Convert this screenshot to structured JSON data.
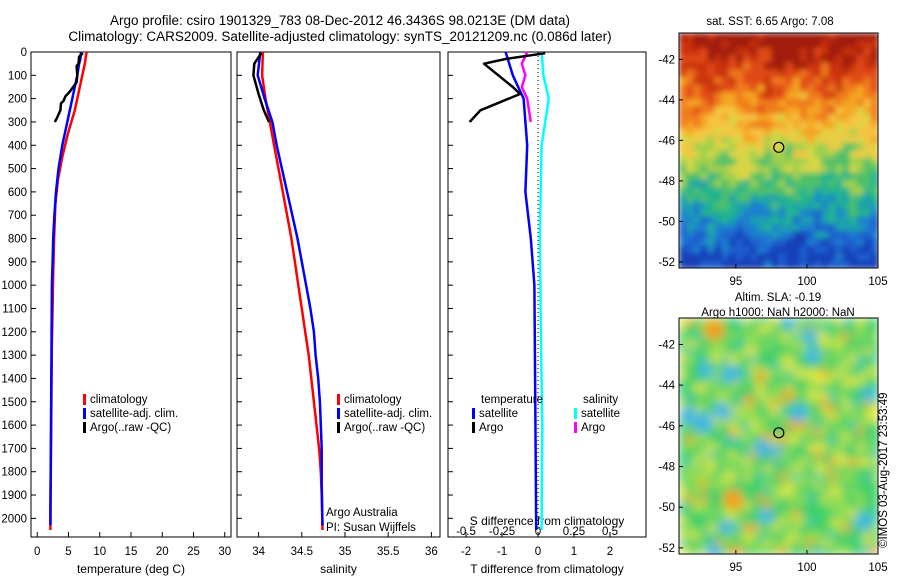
{
  "header": {
    "title_line1": "Argo profile: csiro 1901329_783 08-Dec-2012 46.3436S 98.0213E (DM data)",
    "title_line2": "Climatology: CARS2009. Satellite-adjusted climatology: synTS_20121209.nc (0.086d later)"
  },
  "colors": {
    "climatology": "#ff0000",
    "satellite": "#0000ff",
    "argo": "#000000",
    "satellite_salinity": "#00ffff",
    "argo_salinity": "#ff00ff"
  },
  "chart_data": [
    {
      "type": "line",
      "id": "temperature",
      "xlabel": "temperature (deg C)",
      "ylabel": "",
      "xlim": [
        -1,
        31
      ],
      "ylim": [
        2080,
        0
      ],
      "y_reversed": true,
      "xticks": [
        0,
        5,
        10,
        15,
        20,
        25,
        30
      ],
      "yticks": [
        0,
        100,
        200,
        300,
        400,
        500,
        600,
        700,
        800,
        900,
        1000,
        1100,
        1200,
        1300,
        1400,
        1500,
        1600,
        1700,
        1800,
        1900,
        2000
      ],
      "legend": [
        "climatology",
        "satellite-adj. clim.",
        "Argo(..raw -QC)"
      ],
      "series": [
        {
          "name": "climatology",
          "x": [
            7.9,
            7.6,
            6.8,
            6.0,
            4.9,
            4.0,
            3.3,
            2.9,
            2.7,
            2.55,
            2.45,
            2.35,
            2.3,
            2.25,
            2.2,
            2.15,
            2.1
          ],
          "y": [
            0,
            50,
            150,
            250,
            350,
            450,
            550,
            650,
            800,
            950,
            1100,
            1250,
            1400,
            1550,
            1700,
            1850,
            2050
          ]
        },
        {
          "name": "satellite-adj. clim.",
          "x": [
            7.0,
            6.9,
            6.7,
            6.4,
            5.6,
            4.8,
            4.0,
            3.4,
            3.0,
            2.75,
            2.55,
            2.45,
            2.35,
            2.3,
            2.25,
            2.2,
            2.15,
            2.1,
            2.1
          ],
          "y": [
            0,
            30,
            50,
            100,
            200,
            300,
            400,
            500,
            600,
            700,
            800,
            900,
            1000,
            1200,
            1400,
            1600,
            1800,
            1950,
            2030
          ]
        },
        {
          "name": "Argo(..raw -QC)",
          "x": [
            7.3,
            6.7,
            6.6,
            6.3,
            6.4,
            6.3,
            5.2,
            4.5,
            4.2,
            3.8,
            3.7,
            3.2,
            2.8
          ],
          "y": [
            5,
            20,
            50,
            60,
            100,
            130,
            170,
            190,
            210,
            220,
            250,
            280,
            300
          ]
        }
      ]
    },
    {
      "type": "line",
      "id": "salinity",
      "xlabel": "salinity",
      "ylabel": "",
      "xlim": [
        33.75,
        36.1
      ],
      "ylim": [
        2080,
        0
      ],
      "y_reversed": true,
      "xticks": [
        34,
        34.5,
        35,
        35.5,
        36
      ],
      "legend": [
        "climatology",
        "satellite-adj. clim.",
        "Argo(..raw -QC)"
      ],
      "series": [
        {
          "name": "climatology",
          "x": [
            34.05,
            34.04,
            34.08,
            34.13,
            34.18,
            34.23,
            34.28,
            34.33,
            34.38,
            34.42,
            34.46,
            34.5,
            34.54,
            34.58,
            34.61,
            34.64,
            34.67,
            34.7,
            34.72,
            34.73,
            34.74
          ],
          "y": [
            0,
            100,
            200,
            300,
            400,
            500,
            600,
            700,
            800,
            900,
            1000,
            1100,
            1200,
            1300,
            1400,
            1500,
            1600,
            1700,
            1800,
            1900,
            2050
          ]
        },
        {
          "name": "satellite-adj. clim.",
          "x": [
            34.02,
            33.99,
            34.07,
            34.16,
            34.21,
            34.27,
            34.33,
            34.39,
            34.45,
            34.5,
            34.55,
            34.6,
            34.64,
            34.66,
            34.69,
            34.71,
            34.72,
            34.73,
            34.73,
            34.74
          ],
          "y": [
            0,
            100,
            200,
            300,
            400,
            500,
            600,
            700,
            800,
            900,
            1000,
            1100,
            1200,
            1300,
            1400,
            1500,
            1600,
            1700,
            1850,
            2030
          ]
        },
        {
          "name": "Argo(..raw -QC)",
          "x": [
            34.03,
            33.95,
            33.94,
            34.0,
            34.06,
            34.12
          ],
          "y": [
            5,
            50,
            100,
            180,
            250,
            300
          ]
        }
      ]
    },
    {
      "type": "line",
      "id": "difference",
      "xlabel": "T difference from climatology",
      "xlabel_top": "S difference from climatology",
      "xlim": [
        -2.5,
        3
      ],
      "ylim": [
        2080,
        0
      ],
      "y_reversed": true,
      "xticks": [
        -2,
        -1,
        0,
        1,
        2
      ],
      "s_xticks": [
        "-0.5",
        "-0.25",
        "0",
        "0.25",
        "0.5"
      ],
      "legend_titles": [
        "temperature",
        "salinity"
      ],
      "legend": [
        "satellite",
        "Argo",
        "satellite",
        "Argo"
      ],
      "series": [
        {
          "name": "satellite",
          "x": [
            -0.9,
            -0.7,
            -0.4,
            -0.3,
            -0.35,
            -0.2,
            -0.1,
            -0.08,
            -0.05
          ],
          "y": [
            0,
            100,
            200,
            400,
            600,
            800,
            1000,
            1400,
            2050
          ]
        },
        {
          "name": "Argo",
          "x": [
            0.2,
            -0.9,
            -1.5,
            -0.7,
            -0.5,
            -1.6,
            -1.9
          ],
          "y": [
            5,
            30,
            50,
            150,
            180,
            250,
            300
          ]
        },
        {
          "name": "satellite",
          "x": [
            0.1,
            0.15,
            0.3,
            0.1,
            0.05,
            0.08,
            0.12,
            0.1
          ],
          "y": [
            0,
            100,
            200,
            400,
            800,
            1200,
            1600,
            2050
          ]
        },
        {
          "name": "Argo",
          "x": [
            -0.3,
            -0.45,
            -0.35,
            -0.45,
            -0.3,
            -0.2
          ],
          "y": [
            0,
            50,
            100,
            150,
            200,
            300
          ]
        }
      ]
    },
    {
      "type": "heatmap",
      "id": "sst",
      "title": "sat. SST: 6.65 Argo: 7.08",
      "xlim": [
        91,
        105
      ],
      "ylim": [
        -52.3,
        -40.7
      ],
      "xticks": [
        95,
        100,
        105
      ],
      "yticks": [
        -42,
        -44,
        -46,
        -48,
        -50,
        -52
      ],
      "marker": {
        "lon": 98.0213,
        "lat": -46.3436
      }
    },
    {
      "type": "heatmap",
      "id": "sla",
      "title_line1": "Altim. SLA: -0.19",
      "title_line2": "Argo h1000: NaN h2000: NaN",
      "xlim": [
        91,
        105
      ],
      "ylim": [
        -52.3,
        -40.7
      ],
      "xticks": [
        95,
        100,
        105
      ],
      "yticks": [
        -42,
        -44,
        -46,
        -48,
        -50,
        -52
      ],
      "marker": {
        "lon": 98.0213,
        "lat": -46.3436
      }
    }
  ],
  "notes": {
    "argo_australia": "Argo Australia",
    "pi": "PI: Susan Wijffels",
    "stamp": "©IMOS 03-Aug-2017 23:53:49"
  }
}
